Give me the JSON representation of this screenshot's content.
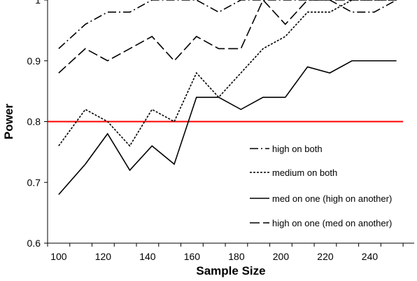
{
  "chart_data": {
    "type": "line",
    "title": "",
    "xlabel": "Sample Size",
    "ylabel": "Power",
    "xlim": [
      95,
      260
    ],
    "ylim": [
      0.6,
      1.0
    ],
    "xticks": [
      "100",
      "120",
      "140",
      "160",
      "180",
      "200",
      "220",
      "240"
    ],
    "yticks": [
      "0.6",
      "0.7",
      "0.8",
      "0.9",
      "1"
    ],
    "grid": false,
    "legend_position": "lower-right",
    "x": [
      100,
      112,
      122,
      132,
      142,
      152,
      162,
      172,
      182,
      192,
      202,
      212,
      222,
      232,
      242,
      252
    ],
    "series": [
      {
        "name": "high on both",
        "style": "dash-dot",
        "color": "#000000",
        "values": [
          0.92,
          0.96,
          0.98,
          0.98,
          1.0,
          1.0,
          1.0,
          0.98,
          1.0,
          1.0,
          1.0,
          1.0,
          1.0,
          0.98,
          0.98,
          1.0
        ]
      },
      {
        "name": "medium on both",
        "style": "short-dash",
        "color": "#000000",
        "values": [
          0.76,
          0.82,
          0.8,
          0.76,
          0.82,
          0.8,
          0.88,
          0.84,
          0.88,
          0.92,
          0.94,
          0.98,
          0.98,
          1.0,
          1.0,
          1.0
        ]
      },
      {
        "name": "med on one (high on another)",
        "style": "solid",
        "color": "#000000",
        "values": [
          0.68,
          0.73,
          0.78,
          0.72,
          0.76,
          0.73,
          0.84,
          0.84,
          0.82,
          0.84,
          0.84,
          0.89,
          0.88,
          0.9,
          0.9,
          0.9
        ]
      },
      {
        "name": "high on one (med on another)",
        "style": "long-dash",
        "color": "#000000",
        "values": [
          0.88,
          0.92,
          0.9,
          0.92,
          0.94,
          0.9,
          0.94,
          0.92,
          0.92,
          1.0,
          0.96,
          1.0,
          1.0,
          1.0,
          1.0,
          1.0
        ]
      }
    ],
    "reference_line": {
      "y": 0.8,
      "color": "#ff0000"
    }
  }
}
